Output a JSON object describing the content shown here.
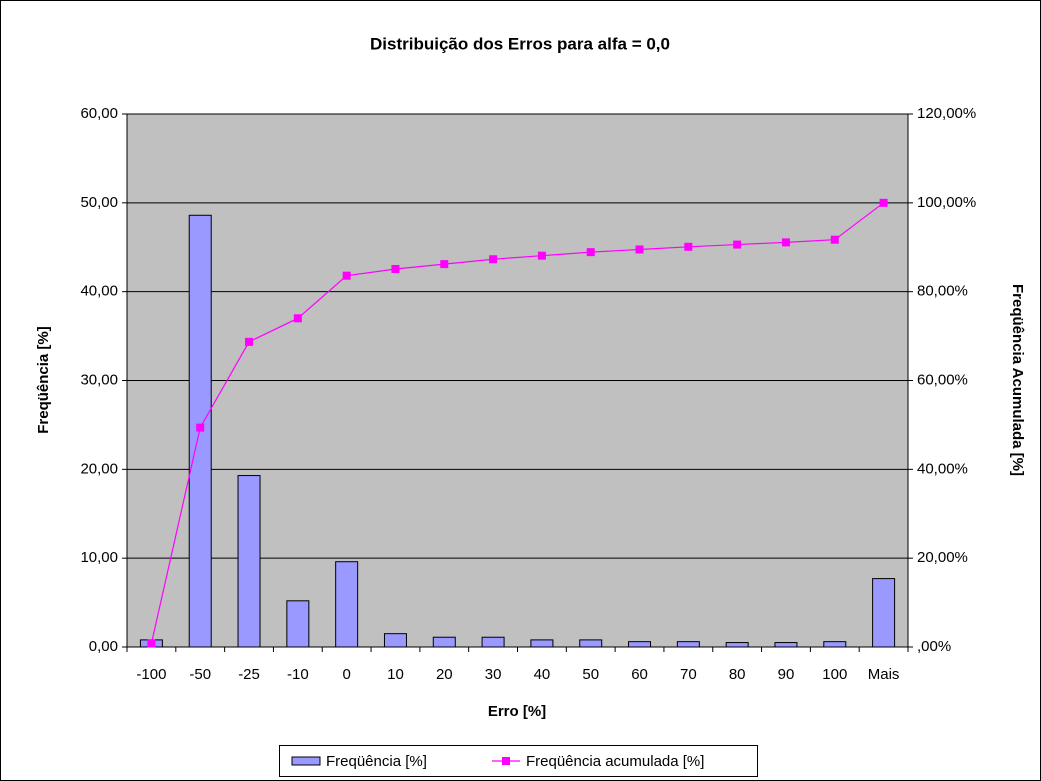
{
  "chart_data": {
    "type": "bar_line",
    "title": "Distribuição dos Erros para alfa = 0,0",
    "x_label": "Erro [%]",
    "y_label": "Freqüência [%]",
    "y2_label": "Freqüência Acumulada [%]",
    "categories": [
      "-100",
      "-50",
      "-25",
      "-10",
      "0",
      "10",
      "20",
      "30",
      "40",
      "50",
      "60",
      "70",
      "80",
      "90",
      "100",
      "Mais"
    ],
    "series": [
      {
        "name": "Freqüência [%]",
        "type": "bar",
        "color": "#9999ff",
        "values": [
          0.8,
          48.6,
          19.3,
          5.2,
          9.6,
          1.5,
          1.1,
          1.1,
          0.8,
          0.8,
          0.6,
          0.6,
          0.5,
          0.5,
          0.6,
          7.7
        ]
      },
      {
        "name": "Freqüência acumulada [%]",
        "type": "line",
        "axis": "y2",
        "color": "#ff00ff",
        "values": [
          0.8,
          49.4,
          68.7,
          74.0,
          83.6,
          85.1,
          86.2,
          87.3,
          88.1,
          88.9,
          89.5,
          90.1,
          90.6,
          91.1,
          91.7,
          100
        ]
      }
    ],
    "ylim": [
      0,
      60
    ],
    "yticks": [
      {
        "value": 0,
        "label": "0,00"
      },
      {
        "value": 10,
        "label": "10,00"
      },
      {
        "value": 20,
        "label": "20,00"
      },
      {
        "value": 30,
        "label": "30,00"
      },
      {
        "value": 40,
        "label": "40,00"
      },
      {
        "value": 50,
        "label": "50,00"
      },
      {
        "value": 60,
        "label": "60,00"
      }
    ],
    "y2lim": [
      0,
      120
    ],
    "y2ticks": [
      {
        "value": 0,
        "label": ",00%"
      },
      {
        "value": 20,
        "label": "20,00%"
      },
      {
        "value": 40,
        "label": "40,00%"
      },
      {
        "value": 60,
        "label": "60,00%"
      },
      {
        "value": 80,
        "label": "80,00%"
      },
      {
        "value": 100,
        "label": "100,00%"
      },
      {
        "value": 120,
        "label": "120,00%"
      }
    ],
    "grid": true,
    "legend": "bottom",
    "plot_background": "#c0c0c0"
  }
}
